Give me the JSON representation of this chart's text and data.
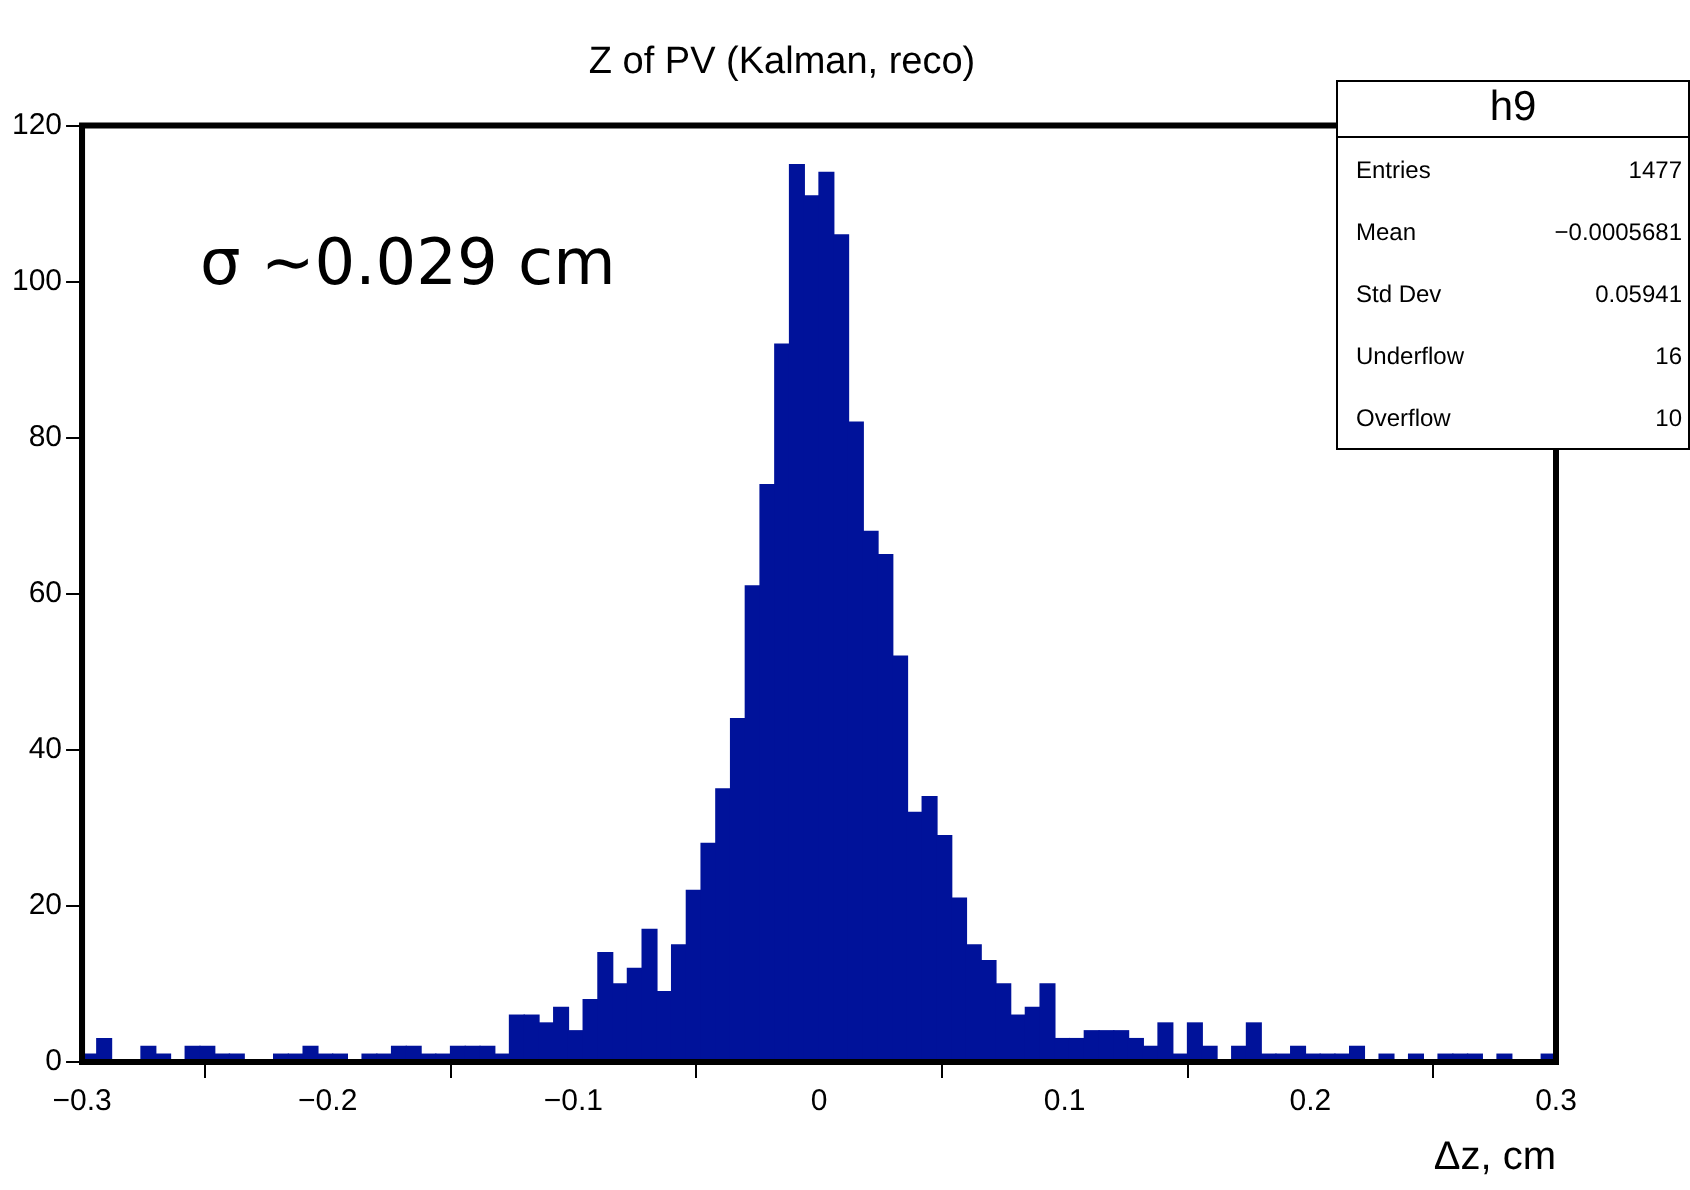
{
  "chart_data": {
    "type": "histogram",
    "title": "Z of PV (Kalman, reco)",
    "xlabel": "Δz, cm",
    "bins": [
      -0.3,
      -0.294,
      -0.288,
      -0.282,
      -0.276,
      -0.27,
      -0.264,
      -0.258,
      -0.252,
      -0.246,
      -0.24,
      -0.234,
      -0.228,
      -0.222,
      -0.216,
      -0.21,
      -0.204,
      -0.198,
      -0.192,
      -0.186,
      -0.18,
      -0.174,
      -0.168,
      -0.162,
      -0.156,
      -0.15,
      -0.144,
      -0.138,
      -0.132,
      -0.126,
      -0.12,
      -0.114,
      -0.108,
      -0.102,
      -0.096,
      -0.09,
      -0.084,
      -0.078,
      -0.072,
      -0.066,
      -0.06,
      -0.054,
      -0.048,
      -0.042,
      -0.036,
      -0.03,
      -0.024,
      -0.018,
      -0.012,
      -0.006,
      0,
      0.006,
      0.012,
      0.018,
      0.024,
      0.03,
      0.036,
      0.042,
      0.048,
      0.054,
      0.06,
      0.066,
      0.072,
      0.078,
      0.084,
      0.09,
      0.096,
      0.102,
      0.108,
      0.114,
      0.12,
      0.126,
      0.132,
      0.138,
      0.144,
      0.15,
      0.156,
      0.162,
      0.168,
      0.174,
      0.18,
      0.186,
      0.192,
      0.198,
      0.204,
      0.21,
      0.216,
      0.222,
      0.228,
      0.234,
      0.24,
      0.246,
      0.252,
      0.258,
      0.264,
      0.27,
      0.276,
      0.282,
      0.288,
      0.294,
      0.3
    ],
    "values": [
      1,
      3,
      0,
      0,
      2,
      1,
      0,
      2,
      2,
      1,
      1,
      0,
      0,
      1,
      1,
      2,
      1,
      1,
      0,
      1,
      1,
      2,
      2,
      1,
      1,
      2,
      2,
      2,
      1,
      6,
      6,
      5,
      7,
      4,
      8,
      14,
      10,
      12,
      17,
      9,
      15,
      22,
      28,
      35,
      44,
      61,
      74,
      92,
      115,
      111,
      114,
      106,
      82,
      68,
      65,
      52,
      32,
      34,
      29,
      21,
      15,
      13,
      10,
      6,
      7,
      10,
      3,
      3,
      4,
      4,
      4,
      3,
      2,
      5,
      1,
      5,
      2,
      0,
      2,
      5,
      1,
      1,
      2,
      1,
      1,
      1,
      2,
      0,
      1,
      0,
      1,
      0,
      1,
      1,
      1,
      0,
      1,
      0,
      0,
      1
    ],
    "color": "#00129a",
    "xlim": [
      -0.3,
      0.3
    ],
    "xticks": [
      {
        "value": -0.3,
        "label": "−0.3"
      },
      {
        "value": -0.2,
        "label": "−0.2"
      },
      {
        "value": -0.1,
        "label": "−0.1"
      },
      0,
      0.1,
      0.2,
      0.3
    ],
    "ylim": [
      0,
      120
    ],
    "yticks": [
      0,
      20,
      40,
      60,
      80,
      100,
      120
    ],
    "grid": false,
    "legend": false,
    "annotations": [
      "σ ~0.029 cm",
      "h9",
      "Entries 1477",
      "Mean −0.0005681",
      "Std Dev 0.05941",
      "Underflow 16",
      "Overflow 10"
    ]
  }
}
